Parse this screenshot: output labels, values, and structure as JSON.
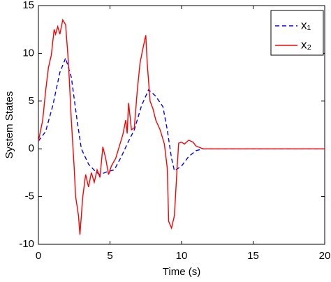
{
  "chart_data": {
    "type": "line",
    "xlabel": "Time (s)",
    "ylabel": "System States",
    "xlim": [
      0,
      20
    ],
    "ylim": [
      -10,
      15
    ],
    "xticks": [
      0,
      5,
      10,
      15,
      20
    ],
    "yticks": [
      -10,
      -5,
      0,
      5,
      10,
      15
    ],
    "legend": "top-right",
    "series": [
      {
        "name": "x₁",
        "color": "#0000ff",
        "dashed": true,
        "x": [
          0,
          0.5,
          1,
          1.5,
          1.9,
          2.3,
          2.7,
          3,
          3.5,
          4,
          4.3,
          4.8,
          5.3,
          5.8,
          6.2,
          6.7,
          7.2,
          7.7,
          8.2,
          8.7,
          9,
          9.3,
          9.5,
          10,
          10.5,
          11,
          11.5,
          20
        ],
        "values": [
          0.8,
          1.8,
          4.5,
          8,
          9.5,
          7.5,
          3,
          0,
          -1.6,
          -2.4,
          -2.7,
          -2.4,
          -2.2,
          -0.8,
          0.5,
          2,
          4.5,
          6.2,
          5.5,
          4.4,
          2,
          -1,
          -2.3,
          -1.8,
          -0.8,
          -0.2,
          0,
          0
        ]
      },
      {
        "name": "x₂",
        "color": "#ff0000",
        "dashed": false,
        "x": [
          0,
          0.3,
          0.5,
          0.7,
          0.9,
          1.1,
          1.2,
          1.35,
          1.5,
          1.7,
          1.9,
          2.1,
          2.3,
          2.5,
          2.6,
          2.8,
          2.9,
          3.1,
          3.3,
          3.5,
          3.7,
          3.9,
          4.1,
          4.3,
          4.5,
          4.7,
          4.9,
          5.1,
          5.4,
          5.7,
          5.9,
          6.1,
          6.2,
          6.3,
          6.5,
          6.7,
          6.9,
          7.1,
          7.3,
          7.5,
          7.6,
          7.8,
          8,
          8.2,
          8.5,
          8.8,
          9,
          9.1,
          9.3,
          9.5,
          9.7,
          9.8,
          10,
          10.2,
          10.5,
          10.8,
          11,
          11.5,
          20
        ],
        "values": [
          0.8,
          3,
          6,
          8.5,
          9.8,
          12.5,
          12,
          12.8,
          12,
          13.5,
          13,
          9,
          3,
          -2,
          -5,
          -7,
          -9,
          -5,
          -2.7,
          -4,
          -2.5,
          -3.5,
          -2.2,
          -3,
          0.2,
          -1,
          -2.7,
          -1.8,
          -1,
          0.5,
          1.5,
          3,
          1.6,
          4.8,
          2,
          2.2,
          6,
          9,
          10.5,
          11.9,
          9,
          5,
          4.2,
          3,
          2,
          0.5,
          -2,
          -7.6,
          -8.3,
          -7,
          -1.7,
          0.6,
          0.7,
          0.5,
          0.9,
          0.7,
          0.3,
          0,
          0
        ]
      }
    ]
  }
}
